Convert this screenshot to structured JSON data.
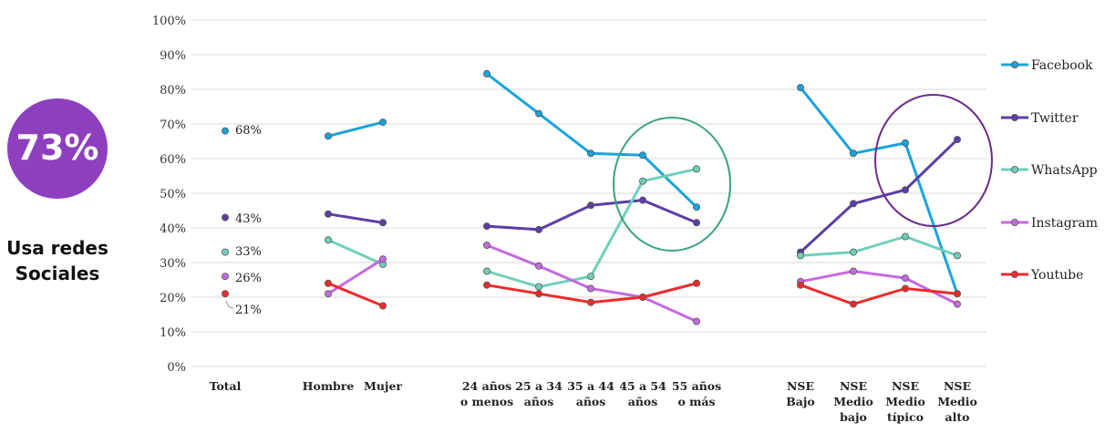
{
  "badge": {
    "value": "73%",
    "caption_line1": "Usa redes",
    "caption_line2": "Sociales",
    "color": "#8e3fbe"
  },
  "chart_data": {
    "type": "line",
    "ylim": [
      0,
      100
    ],
    "yticks": [
      "0%",
      "10%",
      "20%",
      "30%",
      "40%",
      "50%",
      "60%",
      "70%",
      "80%",
      "90%",
      "100%"
    ],
    "grid": true,
    "legend_position": "right",
    "categories": [
      [
        "Total"
      ],
      [
        "Hombre"
      ],
      [
        "Mujer"
      ],
      [
        "24 años",
        "o menos"
      ],
      [
        "25 a 34",
        "años"
      ],
      [
        "35 a 44",
        "años"
      ],
      [
        "45 a 54",
        "años"
      ],
      [
        "55 años",
        "o más"
      ],
      [
        "NSE",
        "Bajo"
      ],
      [
        "NSE",
        "Medio",
        "bajo"
      ],
      [
        "NSE",
        "Medio",
        "típico"
      ],
      [
        "NSE",
        "Medio",
        "alto"
      ]
    ],
    "groups": [
      [
        0,
        0
      ],
      [
        1,
        2
      ],
      [
        3,
        7
      ],
      [
        8,
        11
      ]
    ],
    "total_labels": [
      "68%",
      "43%",
      "33%",
      "26%",
      "21%"
    ],
    "series": [
      {
        "name": "Facebook",
        "color": "#1aa3dc",
        "values": [
          68,
          66.5,
          70.5,
          84.5,
          73,
          61.5,
          61,
          46,
          80.5,
          61.5,
          64.5,
          21
        ]
      },
      {
        "name": "Twitter",
        "color": "#5a3ea6",
        "values": [
          43,
          44,
          41.5,
          40.5,
          39.5,
          46.5,
          48,
          41.5,
          33,
          47,
          51,
          65.5
        ]
      },
      {
        "name": "WhatsApp",
        "color": "#6fd0b8",
        "values": [
          33,
          36.5,
          29.5,
          27.5,
          23,
          26,
          53.5,
          57,
          32,
          33,
          37.5,
          32
        ]
      },
      {
        "name": "Instagram",
        "color": "#c46ae0",
        "values": [
          26,
          21,
          31,
          35,
          29,
          22.5,
          20,
          13,
          24.5,
          27.5,
          25.5,
          18
        ]
      },
      {
        "name": "Youtube",
        "color": "#ee2a2a",
        "values": [
          21,
          24,
          17.5,
          23.5,
          21,
          18.5,
          20,
          24,
          23.5,
          18,
          22.5,
          21
        ]
      }
    ],
    "annotations": [
      {
        "type": "ellipse",
        "around": "45 a 54 / 55 años",
        "color": "#3aa37d"
      },
      {
        "type": "ellipse",
        "around": "NSE Medio típico / Medio alto",
        "color": "#6a2c8a"
      }
    ]
  }
}
